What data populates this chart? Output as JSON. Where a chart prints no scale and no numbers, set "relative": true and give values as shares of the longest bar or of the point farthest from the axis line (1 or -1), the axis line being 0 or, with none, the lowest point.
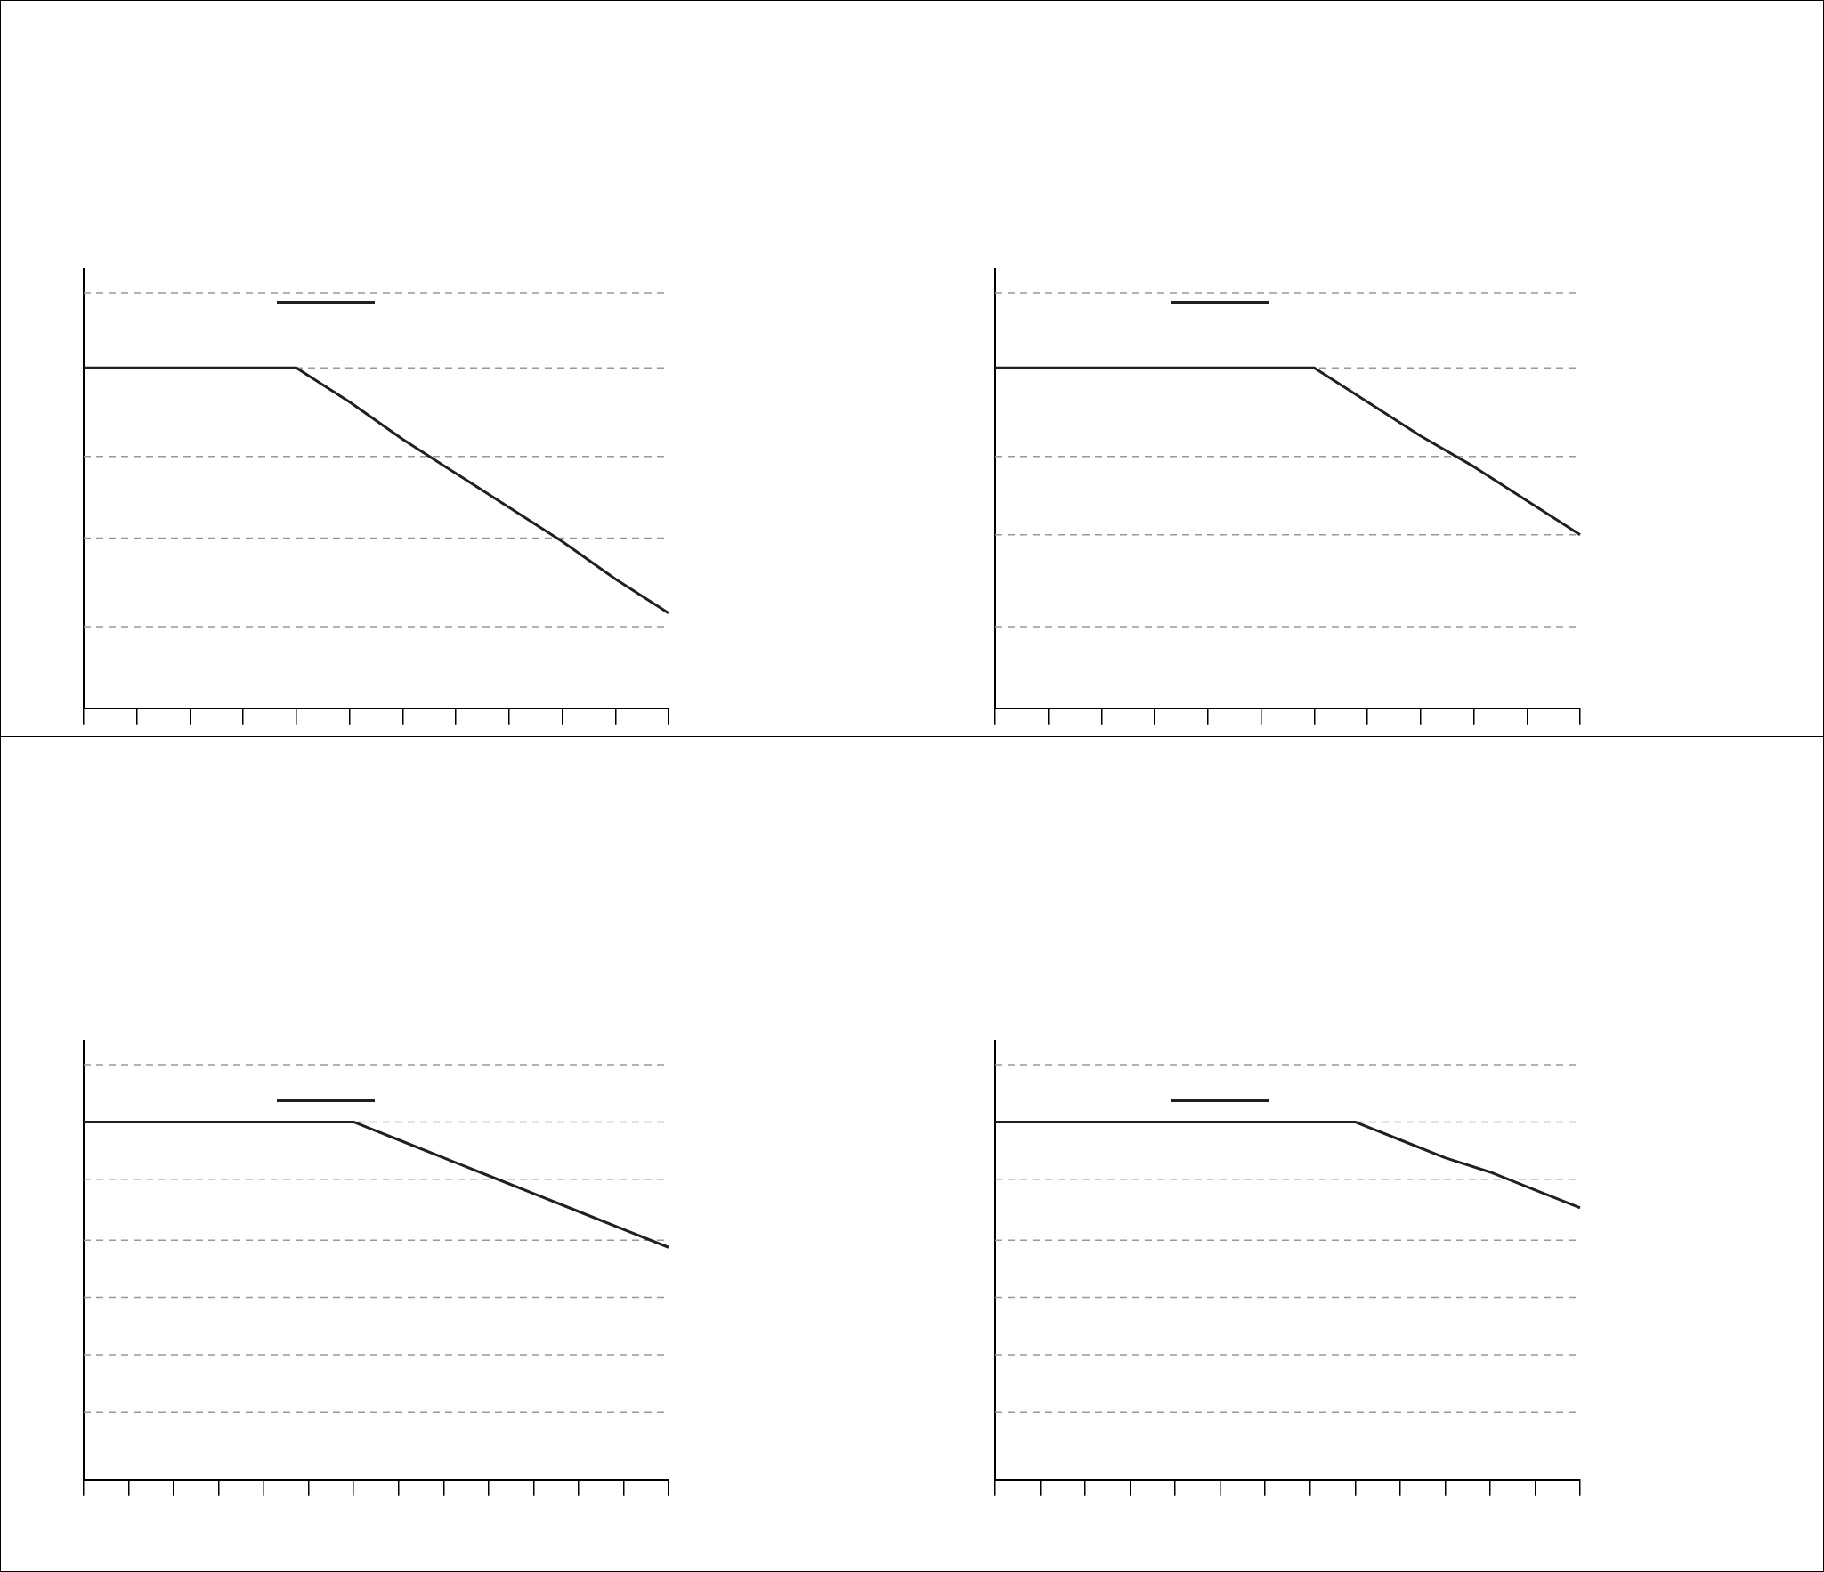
{
  "chart_data": [
    {
      "type": "line",
      "relative": true,
      "line_style": "solid",
      "marker": "none",
      "grid": false,
      "categories": [
        null,
        null,
        null,
        null,
        null,
        null,
        null,
        null,
        null,
        null,
        null,
        null
      ],
      "series": [
        {
          "color": "#231f20",
          "values": [
            1,
            1,
            1,
            1,
            1,
            0.9,
            0.79,
            0.69,
            0.59,
            0.49,
            0.38,
            0.28
          ]
        }
      ],
      "ref_lines": [
        {
          "axis": "y",
          "value": 1.22,
          "color": "#999999",
          "line_style": "dashed"
        },
        {
          "axis": "y",
          "value": 1,
          "color": "#999999",
          "line_style": "dashed"
        },
        {
          "axis": "y",
          "value": 0.74,
          "color": "#999999",
          "line_style": "dashed"
        },
        {
          "axis": "y",
          "value": 0.5,
          "color": "#999999",
          "line_style": "dashed"
        },
        {
          "axis": "y",
          "value": 0.24,
          "color": "#999999",
          "line_style": "dashed"
        }
      ]
    },
    {
      "type": "line",
      "relative": true,
      "line_style": "solid",
      "marker": "none",
      "grid": false,
      "categories": [
        null,
        null,
        null,
        null,
        null,
        null,
        null,
        null,
        null,
        null,
        null,
        null
      ],
      "series": [
        {
          "color": "#231f20",
          "values": [
            1,
            1,
            1,
            1,
            1,
            1,
            1,
            0.9,
            0.8,
            0.71,
            0.61,
            0.51
          ]
        }
      ],
      "ref_lines": [
        {
          "axis": "y",
          "value": 1.22,
          "color": "#999999",
          "line_style": "dashed"
        },
        {
          "axis": "y",
          "value": 1,
          "color": "#999999",
          "line_style": "dashed"
        },
        {
          "axis": "y",
          "value": 0.74,
          "color": "#999999",
          "line_style": "dashed"
        },
        {
          "axis": "y",
          "value": 0.51,
          "color": "#999999",
          "line_style": "dashed"
        },
        {
          "axis": "y",
          "value": 0.24,
          "color": "#999999",
          "line_style": "dashed"
        }
      ]
    },
    {
      "type": "line",
      "relative": true,
      "line_style": "solid",
      "marker": "none",
      "grid": false,
      "categories": [
        null,
        null,
        null,
        null,
        null,
        null,
        null,
        null,
        null,
        null,
        null,
        null,
        null,
        null
      ],
      "series": [
        {
          "color": "#231f20",
          "values": [
            1,
            1,
            1,
            1,
            1,
            1,
            1,
            0.95,
            0.9,
            0.85,
            0.8,
            0.75,
            0.7,
            0.65
          ]
        }
      ],
      "ref_lines": [
        {
          "axis": "y",
          "value": 1.16,
          "color": "#999999",
          "line_style": "dashed"
        },
        {
          "axis": "y",
          "value": 1,
          "color": "#999999",
          "line_style": "dashed"
        },
        {
          "axis": "y",
          "value": 0.84,
          "color": "#999999",
          "line_style": "dashed"
        },
        {
          "axis": "y",
          "value": 0.67,
          "color": "#999999",
          "line_style": "dashed"
        },
        {
          "axis": "y",
          "value": 0.51,
          "color": "#999999",
          "line_style": "dashed"
        },
        {
          "axis": "y",
          "value": 0.35,
          "color": "#999999",
          "line_style": "dashed"
        },
        {
          "axis": "y",
          "value": 0.19,
          "color": "#999999",
          "line_style": "dashed"
        }
      ]
    },
    {
      "type": "line",
      "relative": true,
      "line_style": "solid",
      "marker": "none",
      "grid": false,
      "categories": [
        null,
        null,
        null,
        null,
        null,
        null,
        null,
        null,
        null,
        null,
        null,
        null,
        null,
        null
      ],
      "series": [
        {
          "color": "#231f20",
          "values": [
            1,
            1,
            1,
            1,
            1,
            1,
            1,
            1,
            1,
            0.95,
            0.9,
            0.86,
            0.81,
            0.76
          ]
        }
      ],
      "ref_lines": [
        {
          "axis": "y",
          "value": 1.16,
          "color": "#999999",
          "line_style": "dashed"
        },
        {
          "axis": "y",
          "value": 1,
          "color": "#999999",
          "line_style": "dashed"
        },
        {
          "axis": "y",
          "value": 0.84,
          "color": "#999999",
          "line_style": "dashed"
        },
        {
          "axis": "y",
          "value": 0.67,
          "color": "#999999",
          "line_style": "dashed"
        },
        {
          "axis": "y",
          "value": 0.51,
          "color": "#999999",
          "line_style": "dashed"
        },
        {
          "axis": "y",
          "value": 0.35,
          "color": "#999999",
          "line_style": "dashed"
        },
        {
          "axis": "y",
          "value": 0.19,
          "color": "#999999",
          "line_style": "dashed"
        }
      ]
    }
  ]
}
